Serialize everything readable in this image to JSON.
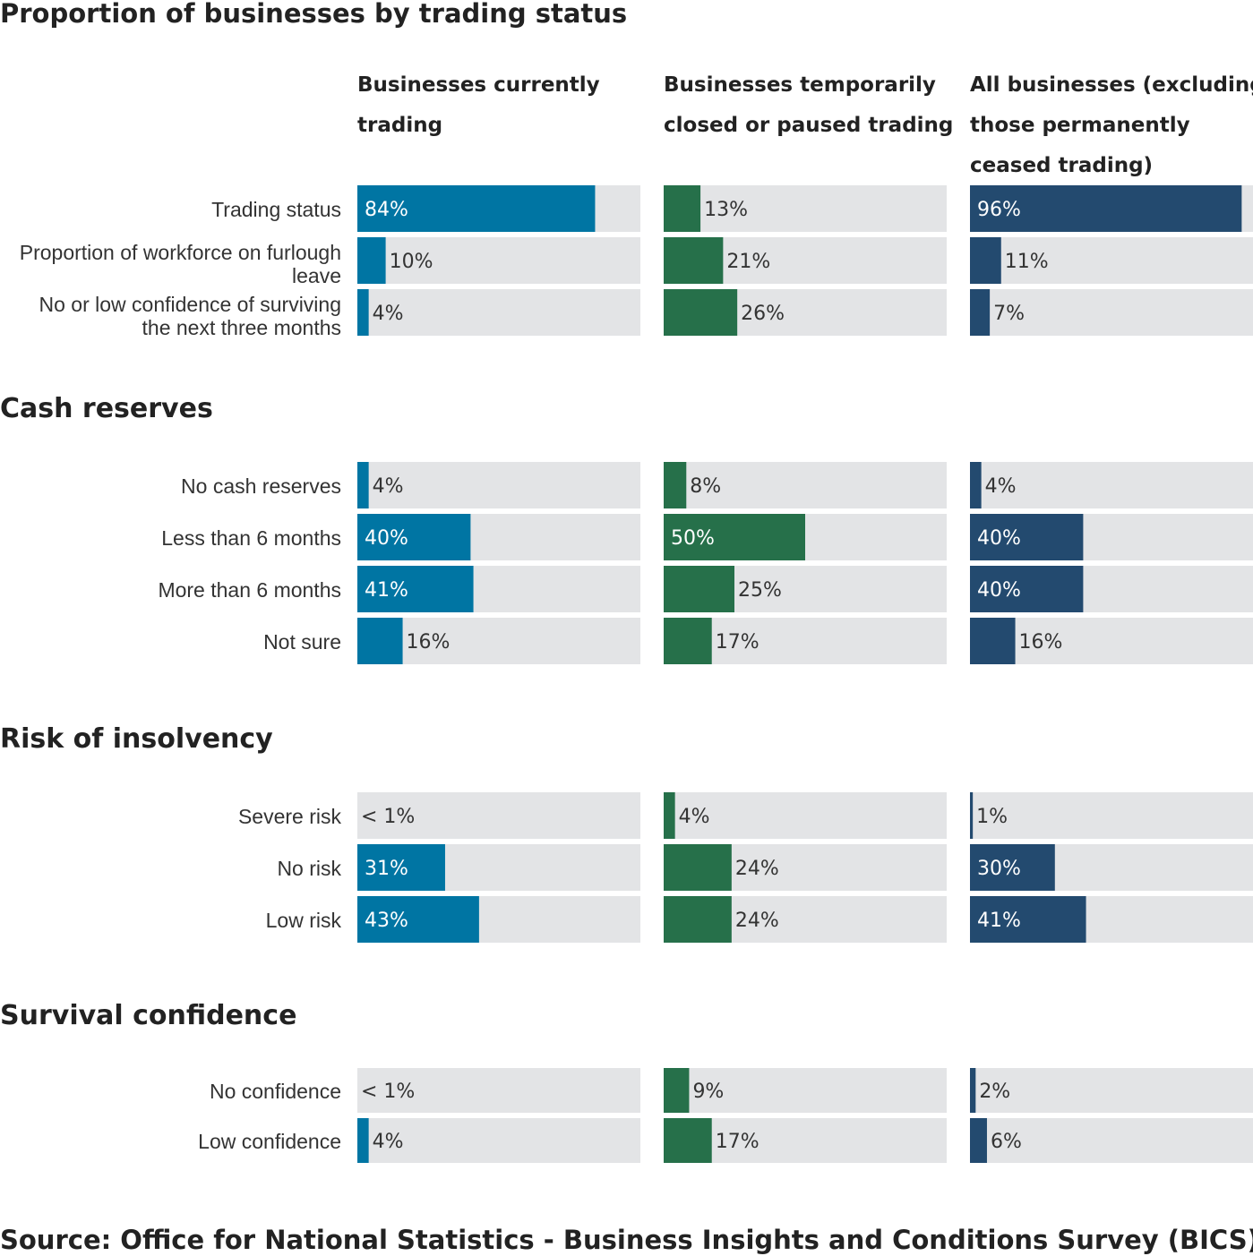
{
  "chart_data": {
    "type": "bar",
    "orientation": "horizontal",
    "title": "Proportion of businesses by trading status",
    "columns": [
      {
        "label_lines": [
          "Businesses currently",
          "trading"
        ],
        "color": "#0075a3"
      },
      {
        "label_lines": [
          "Businesses temporarily",
          "closed or paused trading"
        ],
        "color": "#26704a"
      },
      {
        "label_lines": [
          "All businesses (excluding",
          "those permanently",
          "ceased trading)"
        ],
        "color": "#234a6f"
      }
    ],
    "track_color": "#e3e4e6",
    "xlim": [
      0,
      100
    ],
    "sections": [
      {
        "title": "",
        "rows": [
          {
            "label_lines": [
              "Trading status"
            ],
            "values": [
              84,
              13,
              96
            ],
            "labels": [
              "84%",
              "13%",
              "96%"
            ]
          },
          {
            "label_lines": [
              "Proportion of workforce on furlough",
              "leave"
            ],
            "values": [
              10,
              21,
              11
            ],
            "labels": [
              "10%",
              "21%",
              "11%"
            ]
          },
          {
            "label_lines": [
              "No or low confidence of surviving",
              "the next three months"
            ],
            "values": [
              4,
              26,
              7
            ],
            "labels": [
              "4%",
              "26%",
              "7%"
            ]
          }
        ]
      },
      {
        "title": "Cash reserves",
        "rows": [
          {
            "label_lines": [
              "No cash reserves"
            ],
            "values": [
              4,
              8,
              4
            ],
            "labels": [
              "4%",
              "8%",
              "4%"
            ]
          },
          {
            "label_lines": [
              "Less than 6 months"
            ],
            "values": [
              40,
              50,
              40
            ],
            "labels": [
              "40%",
              "50%",
              "40%"
            ]
          },
          {
            "label_lines": [
              "More than 6 months"
            ],
            "values": [
              41,
              25,
              40
            ],
            "labels": [
              "41%",
              "25%",
              "40%"
            ]
          },
          {
            "label_lines": [
              "Not sure"
            ],
            "values": [
              16,
              17,
              16
            ],
            "labels": [
              "16%",
              "17%",
              "16%"
            ]
          }
        ]
      },
      {
        "title": "Risk of insolvency",
        "rows": [
          {
            "label_lines": [
              "Severe risk"
            ],
            "values": [
              0,
              4,
              1
            ],
            "labels": [
              "< 1%",
              "4%",
              "1%"
            ]
          },
          {
            "label_lines": [
              "No risk"
            ],
            "values": [
              31,
              24,
              30
            ],
            "labels": [
              "31%",
              "24%",
              "30%"
            ]
          },
          {
            "label_lines": [
              "Low risk"
            ],
            "values": [
              43,
              24,
              41
            ],
            "labels": [
              "43%",
              "24%",
              "41%"
            ]
          }
        ]
      },
      {
        "title": "Survival confidence",
        "rows": [
          {
            "label_lines": [
              "No confidence"
            ],
            "values": [
              0,
              9,
              2
            ],
            "labels": [
              "< 1%",
              "9%",
              "2%"
            ]
          },
          {
            "label_lines": [
              "Low confidence"
            ],
            "values": [
              4,
              17,
              6
            ],
            "labels": [
              "4%",
              "17%",
              "6%"
            ]
          }
        ]
      }
    ],
    "source": "Source: Office for National Statistics - Business Insights and Conditions Survey (BICS)"
  }
}
